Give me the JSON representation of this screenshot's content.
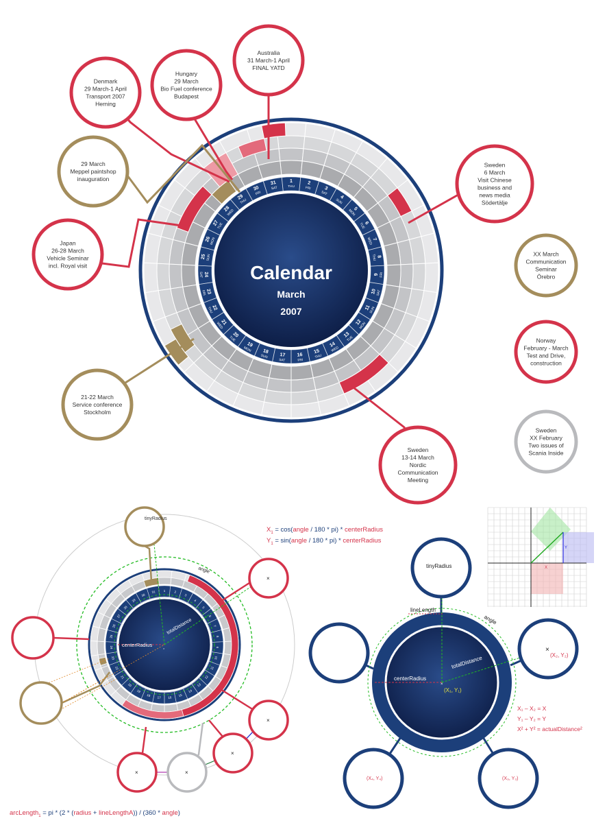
{
  "calendar": {
    "title": "Calendar",
    "month": "March",
    "year": "2007",
    "days": [
      {
        "n": "1",
        "d": "THU"
      },
      {
        "n": "2",
        "d": "FRI"
      },
      {
        "n": "3",
        "d": "SAT"
      },
      {
        "n": "4",
        "d": "SUN"
      },
      {
        "n": "5",
        "d": "MON"
      },
      {
        "n": "6",
        "d": "TUE"
      },
      {
        "n": "7",
        "d": "WED"
      },
      {
        "n": "8",
        "d": "THU"
      },
      {
        "n": "9",
        "d": "FRI"
      },
      {
        "n": "10",
        "d": "SAT"
      },
      {
        "n": "11",
        "d": "SUN"
      },
      {
        "n": "12",
        "d": "MON"
      },
      {
        "n": "13",
        "d": "TUE"
      },
      {
        "n": "14",
        "d": "WED"
      },
      {
        "n": "15",
        "d": "THU"
      },
      {
        "n": "16",
        "d": "FRI"
      },
      {
        "n": "17",
        "d": "SAT"
      },
      {
        "n": "18",
        "d": "SUN"
      },
      {
        "n": "19",
        "d": "MON"
      },
      {
        "n": "20",
        "d": "TUE"
      },
      {
        "n": "21",
        "d": "WED"
      },
      {
        "n": "22",
        "d": "THU"
      },
      {
        "n": "23",
        "d": "FRI"
      },
      {
        "n": "24",
        "d": "SAT"
      },
      {
        "n": "25",
        "d": "SUN"
      },
      {
        "n": "26",
        "d": "MON"
      },
      {
        "n": "27",
        "d": "TUE"
      },
      {
        "n": "28",
        "d": "WED"
      },
      {
        "n": "29",
        "d": "THU"
      },
      {
        "n": "30",
        "d": "FRI"
      },
      {
        "n": "31",
        "d": "SAT"
      }
    ]
  },
  "events": [
    {
      "id": "australia",
      "lines": [
        "Australia",
        "31 March-1 April",
        "FINAL YATD"
      ],
      "color": "#d4334a"
    },
    {
      "id": "hungary",
      "lines": [
        "Hungary",
        "29 March",
        "Bio Fuel conference",
        "Budapest"
      ],
      "color": "#d4334a"
    },
    {
      "id": "denmark",
      "lines": [
        "Denmark",
        "29 March-1 April",
        "Transport 2007",
        "Herning"
      ],
      "color": "#d4334a"
    },
    {
      "id": "meppel",
      "lines": [
        "29 March",
        "Meppel paintshop",
        "inauguration"
      ],
      "color": "#a48d5c"
    },
    {
      "id": "japan",
      "lines": [
        "Japan",
        "26-28 March",
        "Vehicle Seminar",
        "incl. Royal visit"
      ],
      "color": "#d4334a"
    },
    {
      "id": "service",
      "lines": [
        "21-22 March",
        "Service conference",
        "Stockholm"
      ],
      "color": "#a48d5c"
    },
    {
      "id": "sweden-nordic",
      "lines": [
        "Sweden",
        "13-14 March",
        "Nordic",
        "Communication",
        "Meeting"
      ],
      "color": "#d4334a"
    },
    {
      "id": "sweden-chinese",
      "lines": [
        "Sweden",
        "6 March",
        "Visit Chinese",
        "business and",
        "news media",
        "Södertälje"
      ],
      "color": "#d4334a"
    },
    {
      "id": "communication-seminar",
      "lines": [
        "XX March",
        "Communication",
        "Seminar",
        "Örebro"
      ],
      "color": "#a48d5c"
    },
    {
      "id": "norway",
      "lines": [
        "Norway",
        "February - March",
        "Test and Drive,",
        "construction"
      ],
      "color": "#d4334a"
    },
    {
      "id": "scania",
      "lines": [
        "Sweden",
        "XX February",
        "Two issues of",
        "Scania Inside"
      ],
      "color": "#b9babd"
    }
  ],
  "diagram_left": {
    "tiny_radius_label": "tinyRadius",
    "angle_label": "angle",
    "center_radius_label": "centerRadius",
    "total_distance_label": "totalDistance",
    "x1_formula": [
      "X",
      "1",
      " = cos(",
      "angle",
      " / 180 * pi) * ",
      "centerRadius"
    ],
    "y1_formula": [
      "Y",
      "1",
      " = sin(",
      "angle",
      " / 180 * pi) * ",
      "centerRadius"
    ],
    "arc_formula": [
      "arcLength",
      "1",
      " = pi * (2 * (",
      "radius",
      " + ",
      "lineLengthA",
      "))",
      " / (360 * ",
      "angle",
      ")"
    ]
  },
  "diagram_right": {
    "tiny_radius_label": "tinyRadius",
    "line_length_label": "lineLength",
    "angle_label": "angle",
    "center_radius_label": "centerRadius",
    "total_distance_label": "totalDistance",
    "center_coord": "(X₁, Y₁)",
    "right_coord": "(X₂, Y₂)",
    "bottom_left_coord": "(X₄, Y₄)",
    "bottom_right_coord": "(X₃, Y₃)",
    "eq1": "X₁ – X₂ = X",
    "eq2": "Y₁ – Y₂ = Y",
    "eq3": "X² + Y² = actualDistance²",
    "grid_x_label": "X",
    "grid_y_label": "Y"
  },
  "colors": {
    "navy": "#1c3f7a",
    "red": "#d4334a",
    "gold": "#a48d5c",
    "grey": "#b9babd"
  }
}
